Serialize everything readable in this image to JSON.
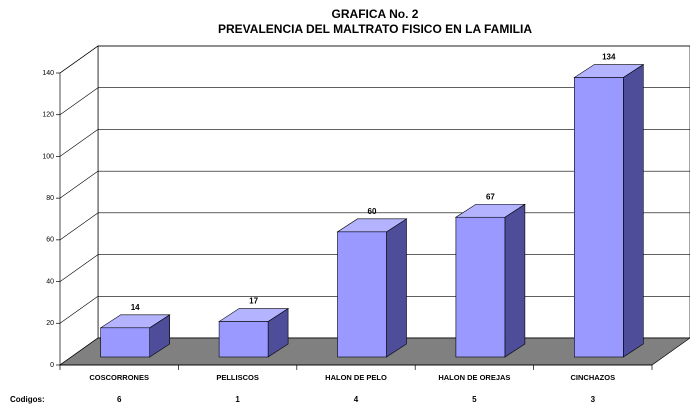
{
  "chart_data": {
    "type": "bar3d",
    "title": "GRAFICA No. 2",
    "subtitle": "PREVALENCIA DEL MALTRATO FISICO EN LA FAMILIA",
    "categories": [
      "COSCORRONES",
      "PELLISCOS",
      "HALON DE PELO",
      "HALON DE OREJAS",
      "CINCHAZOS"
    ],
    "values": [
      14,
      17,
      60,
      67,
      134
    ],
    "codes_label": "Codigos:",
    "codes": [
      6,
      1,
      4,
      5,
      3
    ],
    "color": "#9999ff",
    "ylim": [
      0,
      140
    ],
    "yticks": [
      0,
      20,
      40,
      60,
      80,
      100,
      120,
      140
    ],
    "grid": true
  }
}
